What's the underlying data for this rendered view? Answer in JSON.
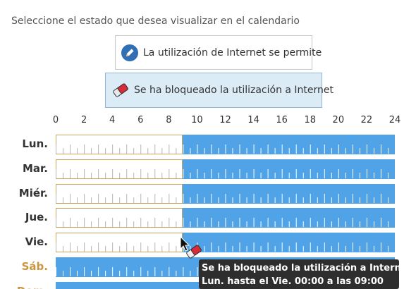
{
  "instruction": "Seleccione el estado que desea visualizar en el calendario",
  "modes": {
    "allow": {
      "label": "La utilización de Internet se permite",
      "icon": "pencil-icon"
    },
    "block": {
      "label": "Se ha bloqueado la utilización a Internet",
      "icon": "eraser-icon",
      "selected": true
    }
  },
  "hours": [
    "0",
    "2",
    "4",
    "6",
    "8",
    "10",
    "12",
    "14",
    "16",
    "18",
    "20",
    "22",
    "24"
  ],
  "days": [
    {
      "label": "Lun.",
      "weekend": false,
      "allowed_until_hour": 9
    },
    {
      "label": "Mar.",
      "weekend": false,
      "allowed_until_hour": 9
    },
    {
      "label": "Miér.",
      "weekend": false,
      "allowed_until_hour": 9
    },
    {
      "label": "Jue.",
      "weekend": false,
      "allowed_until_hour": 9
    },
    {
      "label": "Vie.",
      "weekend": false,
      "allowed_until_hour": 9
    },
    {
      "label": "Sáb.",
      "weekend": true,
      "allowed_until_hour": 0
    },
    {
      "label": "Dom.",
      "weekend": true,
      "allowed_until_hour": 0
    }
  ],
  "colors": {
    "blocked": "#4fa3e6",
    "allowed_border": "#c9a55a",
    "weekend_label": "#c9963e"
  },
  "tooltip": {
    "line1": "Se ha bloqueado la utilización a Internet",
    "line2": "Lun. hasta el Vie.  00:00 a las 09:00"
  }
}
